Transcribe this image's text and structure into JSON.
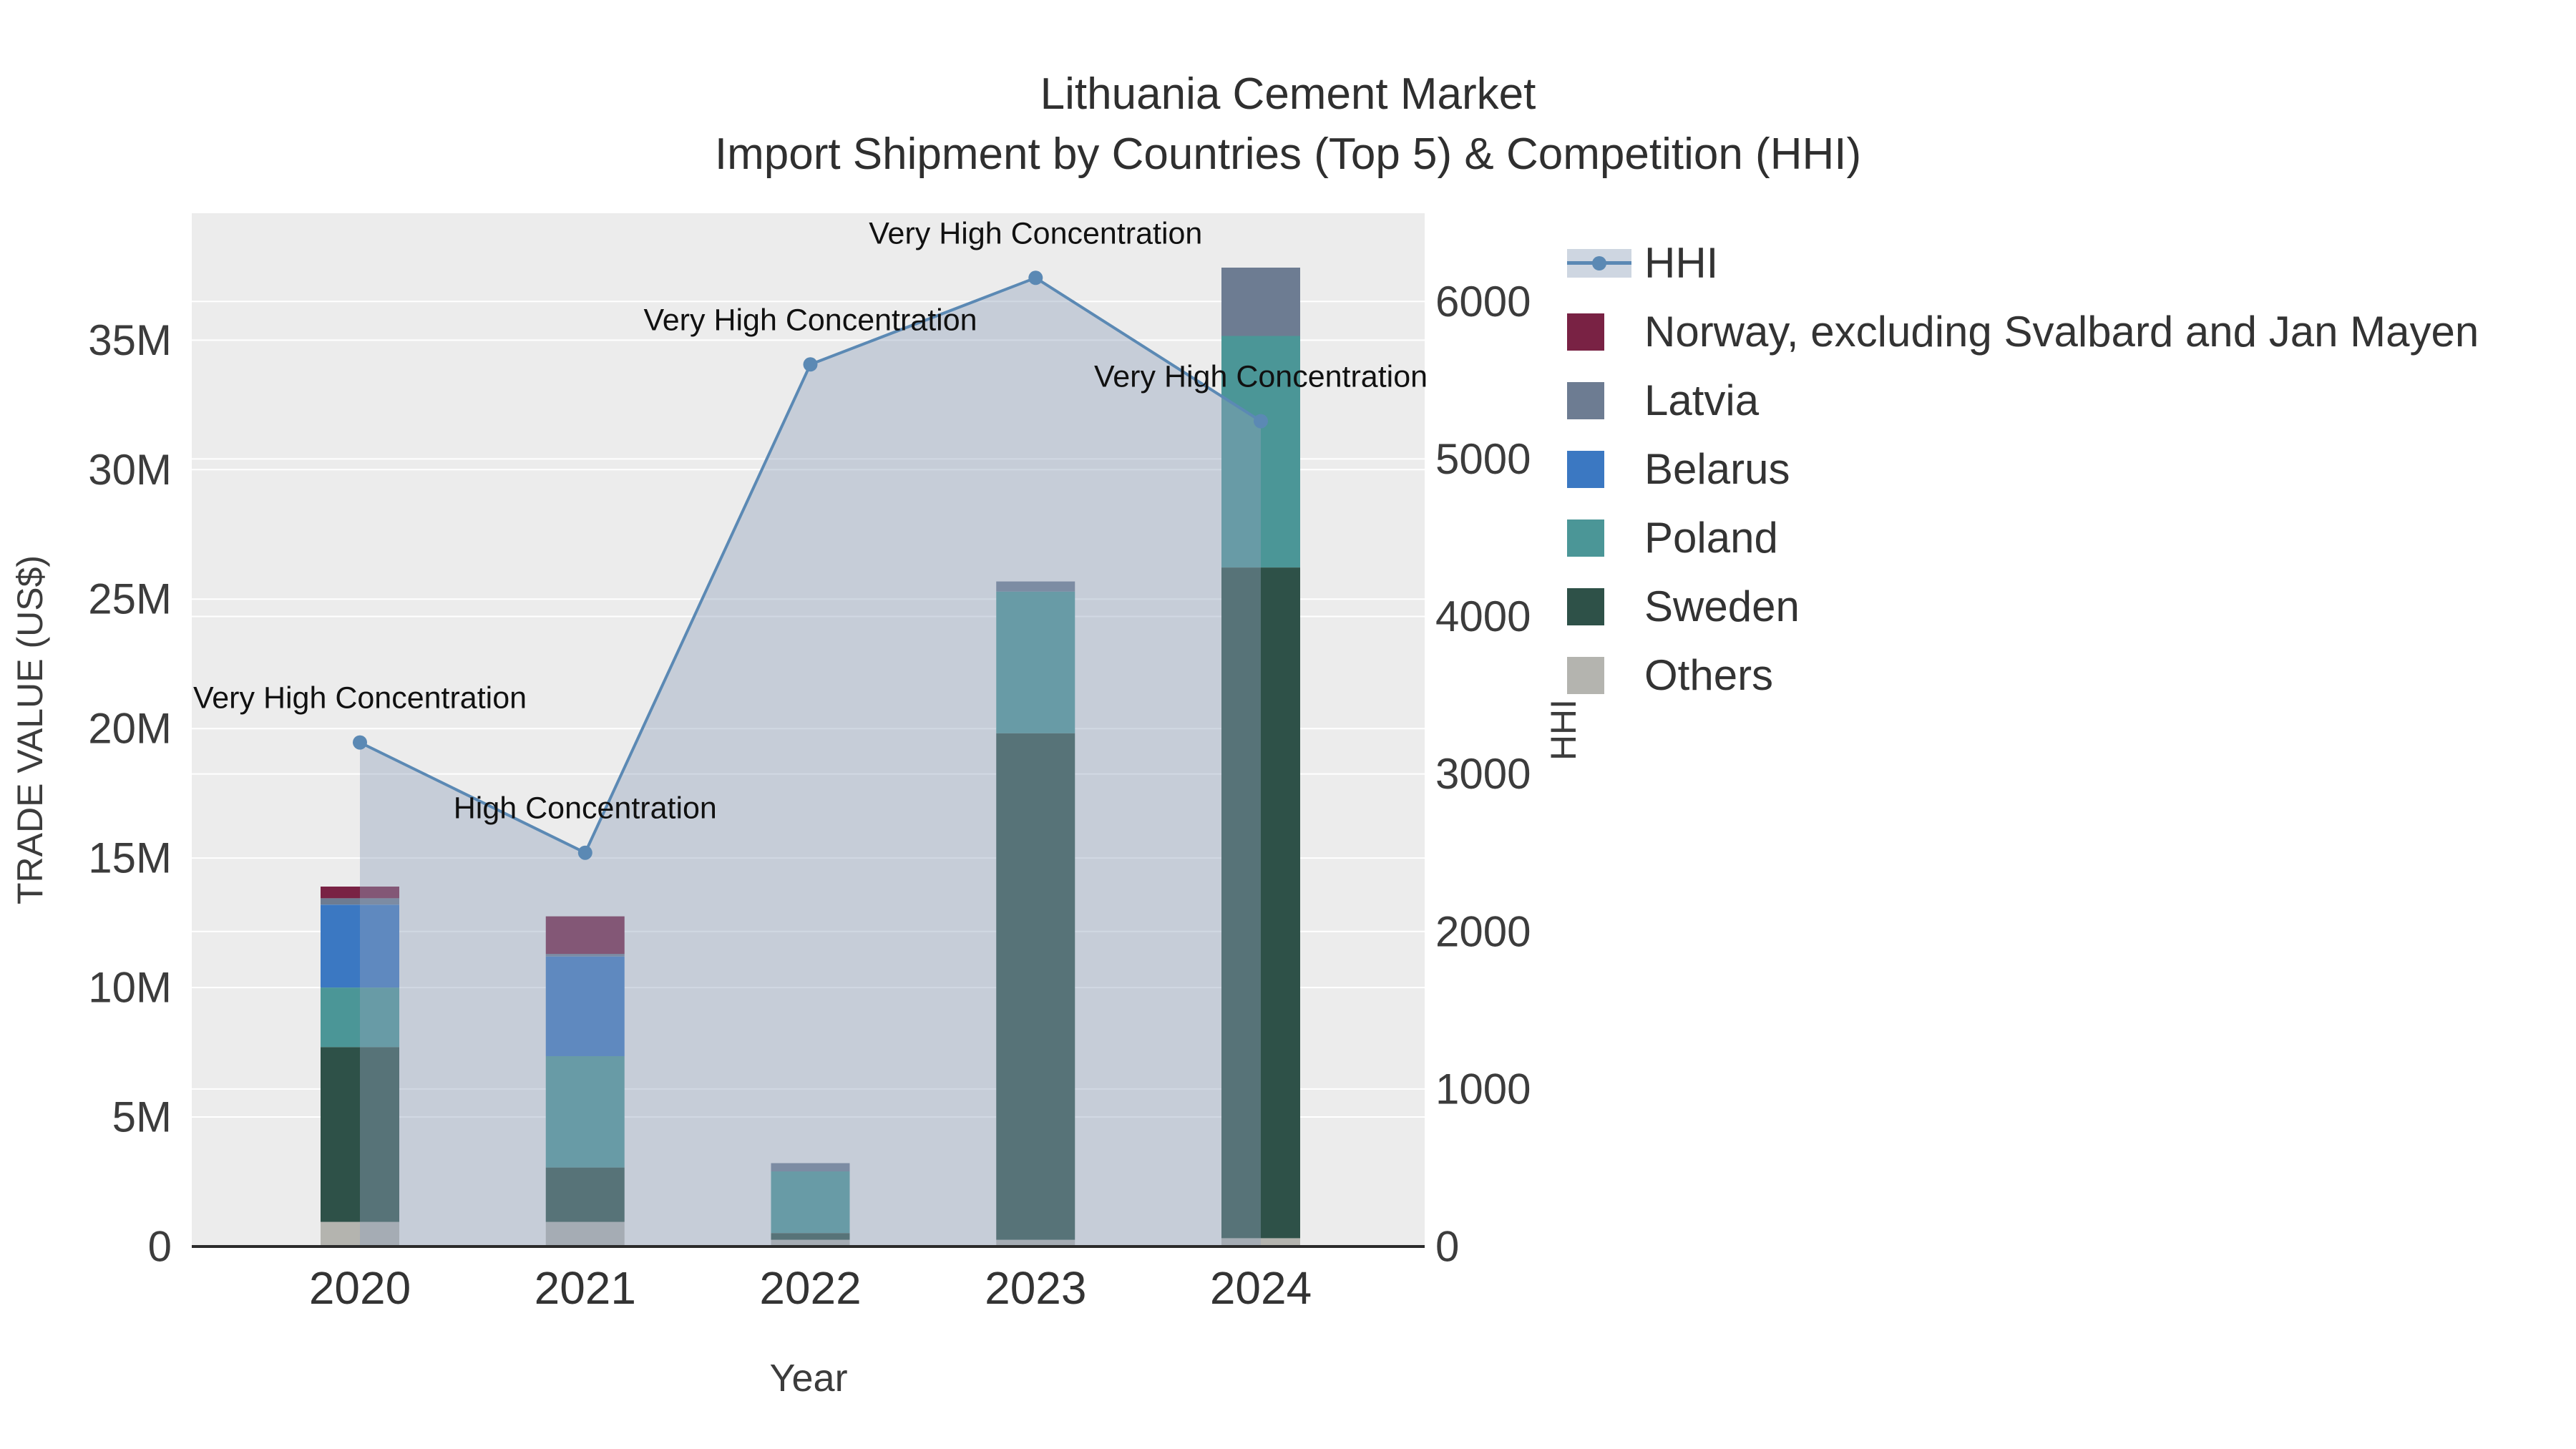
{
  "title": {
    "line1": "Lithuania Cement Market",
    "line2": "Import Shipment by Countries (Top 5) & Competition (HHI)"
  },
  "axes": {
    "x_title": "Year",
    "y_left_title": "TRADE VALUE (US$)",
    "y_right_title": "HHI"
  },
  "legend": {
    "items": [
      {
        "label": "HHI",
        "color": "#5b89b4"
      },
      {
        "label": "Norway, excluding Svalbard and Jan Mayen",
        "color": "#792244"
      },
      {
        "label": "Latvia",
        "color": "#6d7c92"
      },
      {
        "label": "Belarus",
        "color": "#3b78c2"
      },
      {
        "label": "Poland",
        "color": "#4b9697"
      },
      {
        "label": "Sweden",
        "color": "#2e5148"
      },
      {
        "label": "Others",
        "color": "#b4b4af"
      }
    ]
  },
  "chart_data": {
    "type": "combo: stacked bar (trade value) + line with area (HHI)",
    "categories": [
      "2020",
      "2021",
      "2022",
      "2023",
      "2024"
    ],
    "bar_value_unit": "million US$",
    "bar_series_bottom_to_top": [
      {
        "name": "Others",
        "color": "#b4b4af",
        "values": [
          0.95,
          0.95,
          0.26,
          0.26,
          0.32
        ]
      },
      {
        "name": "Sweden",
        "color": "#2e5148",
        "values": [
          6.75,
          2.1,
          0.26,
          19.56,
          25.9
        ]
      },
      {
        "name": "Poland",
        "color": "#4b9697",
        "values": [
          2.3,
          4.3,
          2.38,
          5.47,
          8.94
        ]
      },
      {
        "name": "Belarus",
        "color": "#3b78c2",
        "values": [
          3.2,
          3.85,
          0,
          0,
          0
        ]
      },
      {
        "name": "Latvia",
        "color": "#6d7c92",
        "values": [
          0.25,
          0.1,
          0.32,
          0.39,
          2.64
        ]
      },
      {
        "name": "Norway, excluding Svalbard and Jan Mayen",
        "color": "#792244",
        "values": [
          0.45,
          1.45,
          0,
          0,
          0
        ]
      }
    ],
    "hhi": {
      "name": "HHI",
      "line_color": "#5b89b4",
      "area_color": "rgba(146,163,189,0.42)",
      "values": [
        3200,
        2500,
        5600,
        6150,
        5240
      ],
      "annotations": [
        "Very High Concentration",
        "High Concentration",
        "Very High Concentration",
        "Very High Concentration",
        "Very High Concentration"
      ]
    },
    "y_left": {
      "title": "TRADE VALUE (US$)",
      "ticks": [
        0,
        5,
        10,
        15,
        20,
        25,
        30,
        35
      ],
      "tick_labels": [
        "0",
        "5M",
        "10M",
        "15M",
        "20M",
        "25M",
        "30M",
        "35M"
      ],
      "range": [
        0,
        39.9
      ]
    },
    "y_right": {
      "title": "HHI",
      "ticks": [
        0,
        1000,
        2000,
        3000,
        4000,
        5000,
        6000
      ],
      "tick_labels": [
        "0",
        "1000",
        "2000",
        "3000",
        "4000",
        "5000",
        "6000"
      ],
      "range": [
        0,
        6560
      ]
    },
    "plot_bg": "#ececec",
    "grid_color": "#ffffff",
    "legend_position": "top-right, outside plot",
    "grid": "on"
  }
}
